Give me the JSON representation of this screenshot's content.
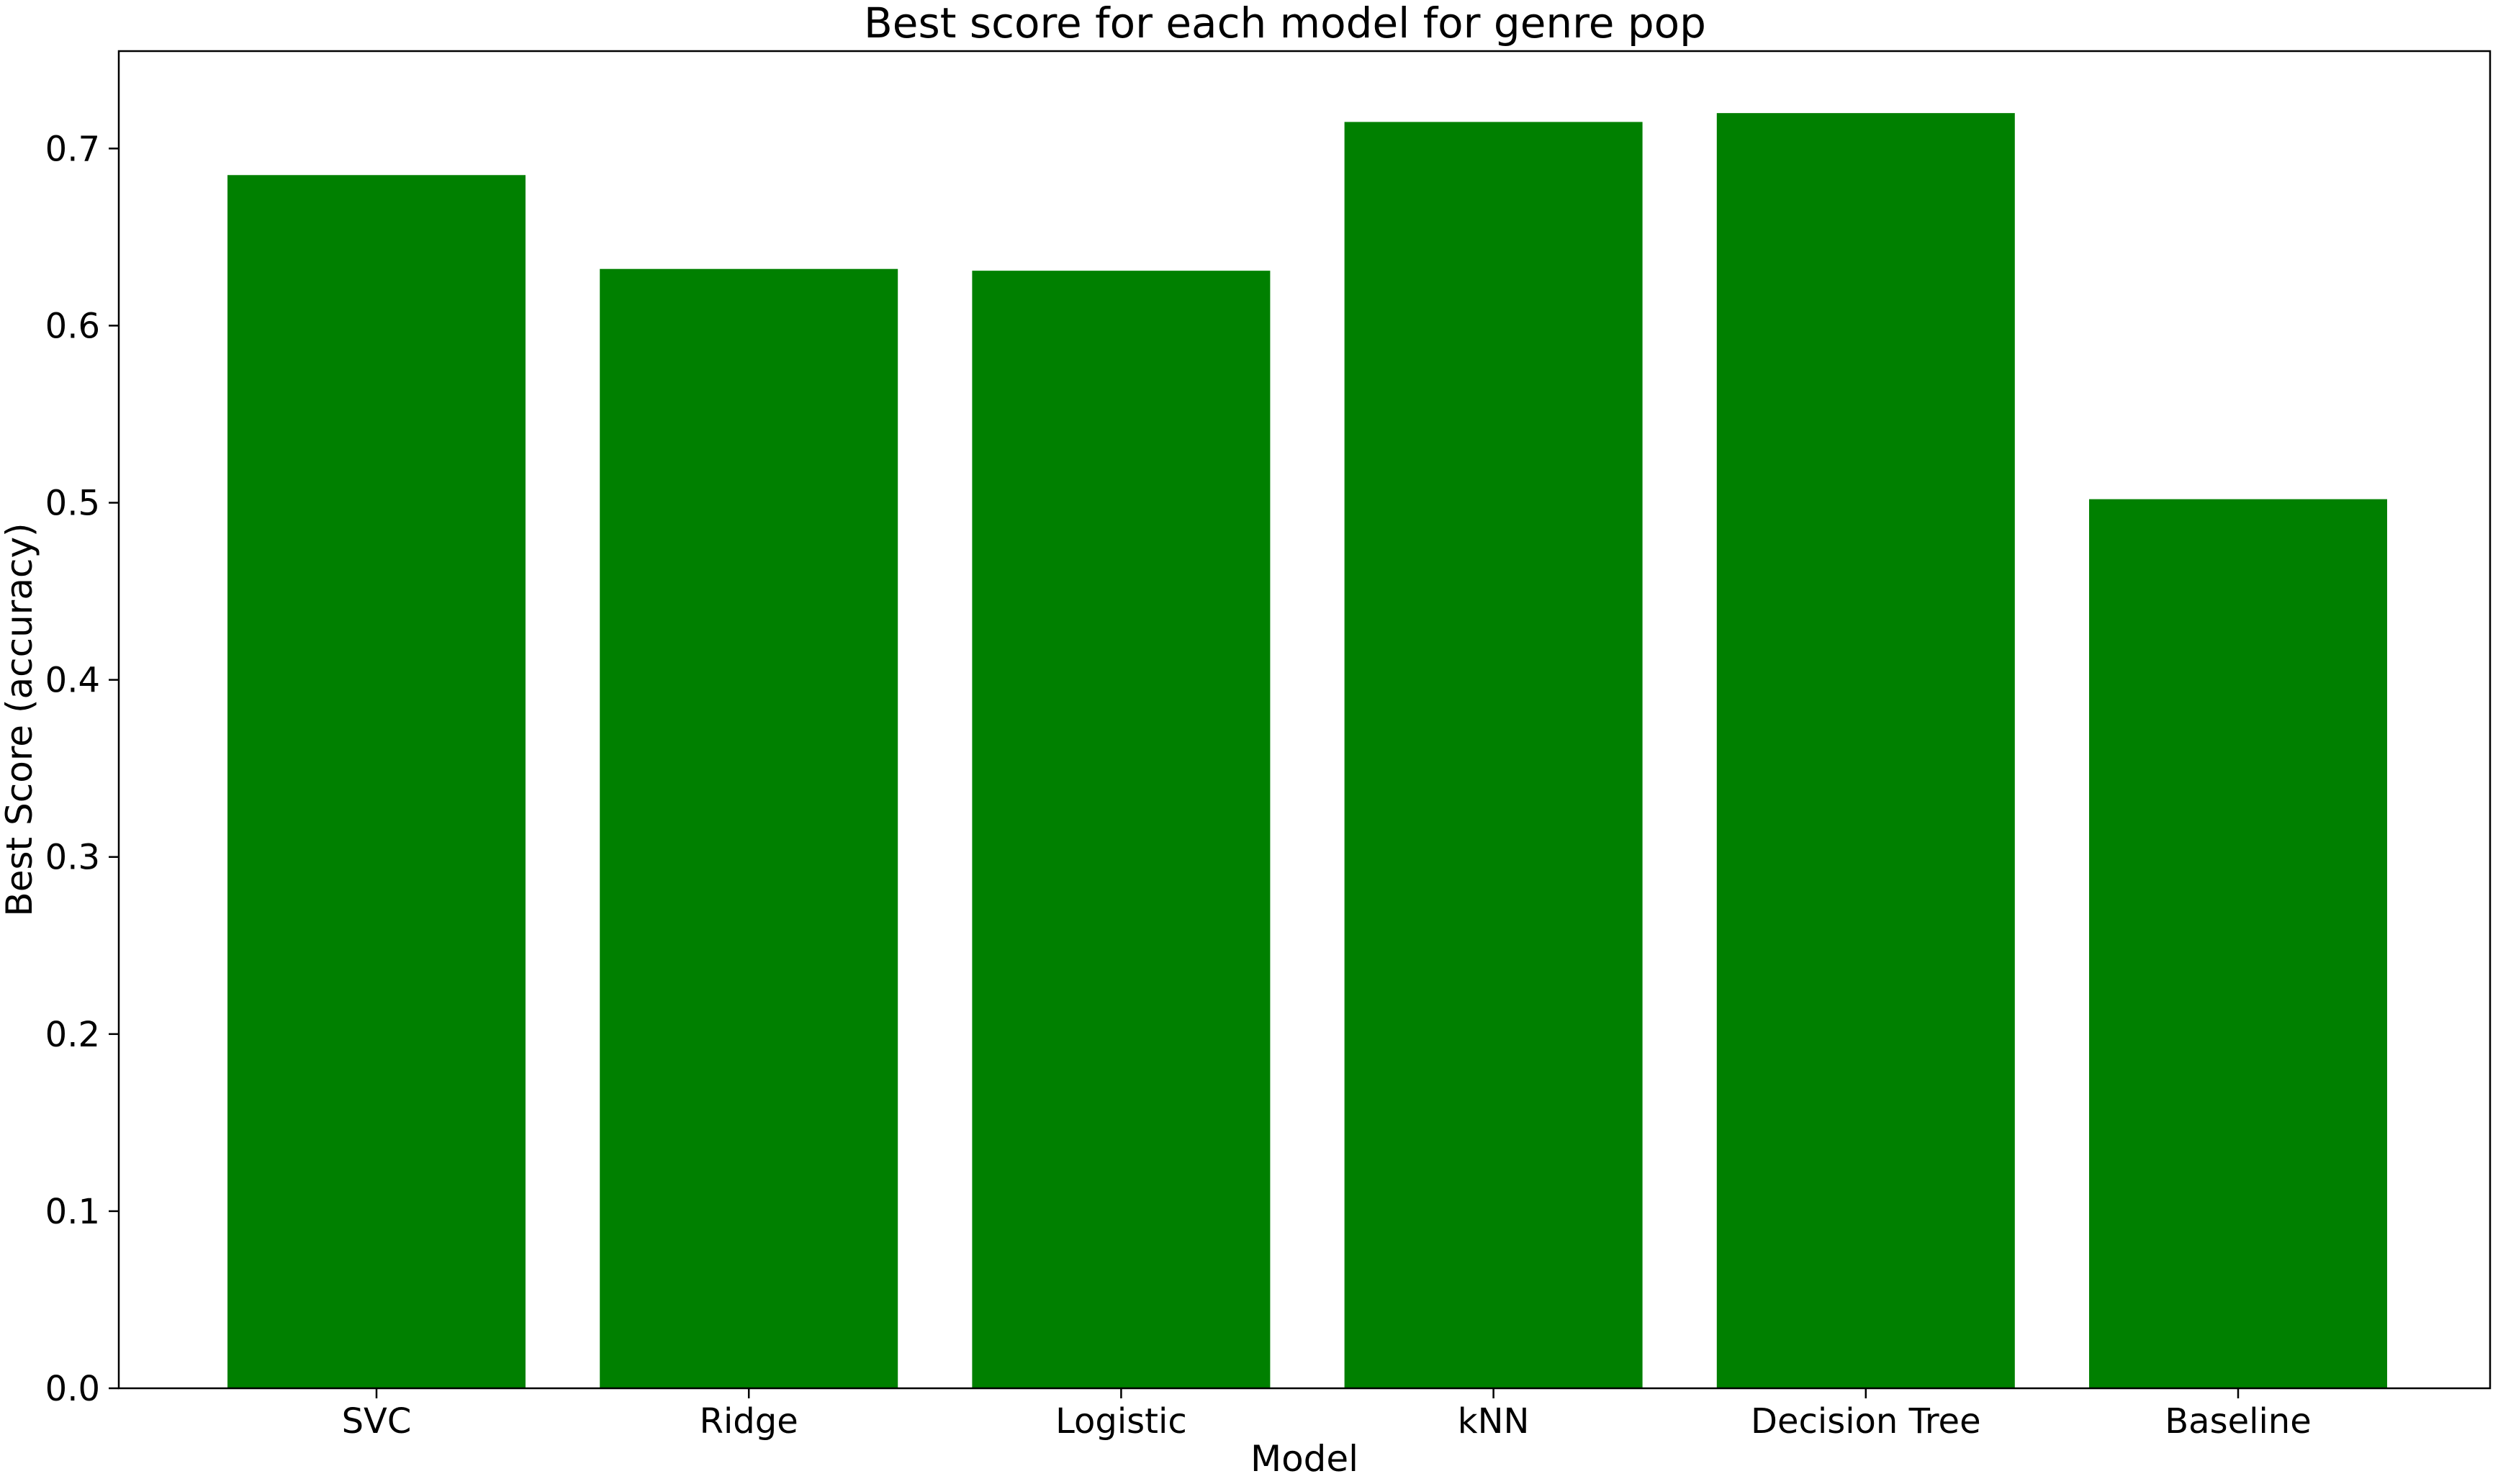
{
  "chart_data": {
    "type": "bar",
    "title": "Best score for each model for genre pop",
    "xlabel": "Model",
    "ylabel": "Best Score (accuracy)",
    "categories": [
      "SVC",
      "Ridge",
      "Logistic",
      "kNN",
      "Decision Tree",
      "Baseline"
    ],
    "values": [
      0.685,
      0.632,
      0.631,
      0.715,
      0.72,
      0.502
    ],
    "ylim": [
      0,
      0.755
    ],
    "yticks": [
      "0.0",
      "0.1",
      "0.2",
      "0.3",
      "0.4",
      "0.5",
      "0.6",
      "0.7"
    ],
    "bar_color": "#008000",
    "grid": false,
    "legend": "none"
  }
}
